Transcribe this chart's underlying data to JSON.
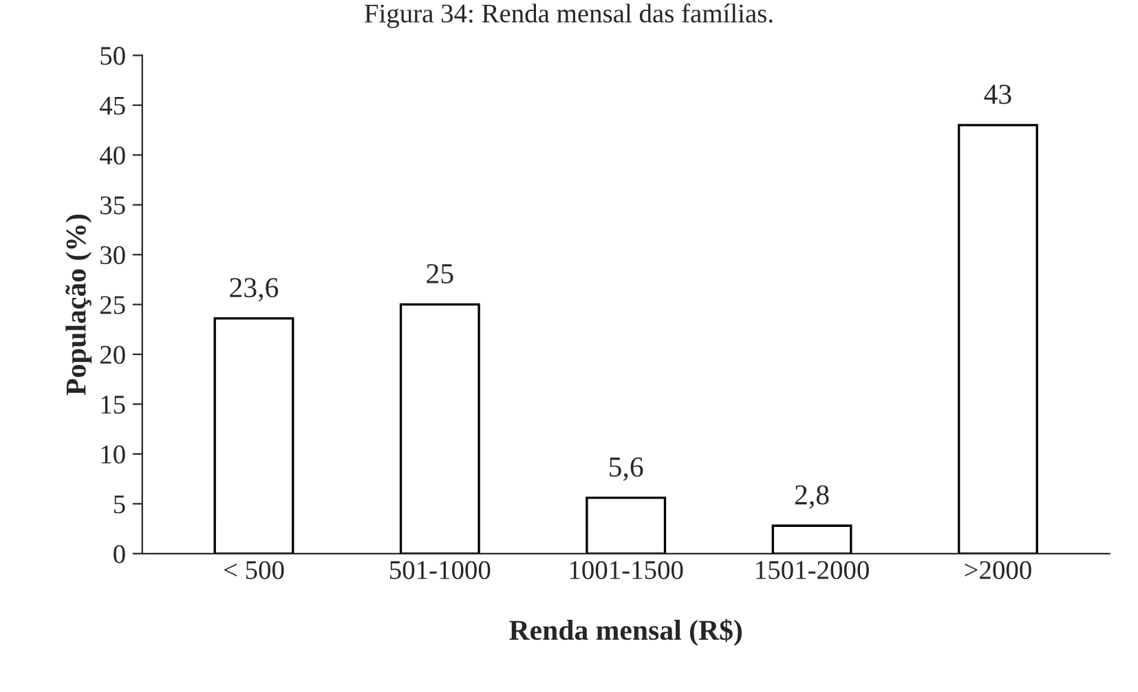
{
  "chart_data": {
    "type": "bar",
    "title": "Figura 34: Renda mensal das famílias.",
    "xlabel": "Renda mensal (R$)",
    "ylabel": "População (%)",
    "categories": [
      "< 500",
      "501-1000",
      "1001-1500",
      "1501-2000",
      ">2000"
    ],
    "values": [
      23.6,
      25,
      5.6,
      2.8,
      43
    ],
    "value_labels": [
      "23,6",
      "25",
      "5,6",
      "2,8",
      "43"
    ],
    "color": "#ffffff",
    "ylim": [
      0,
      50
    ],
    "yticks": [
      0,
      5,
      10,
      15,
      20,
      25,
      30,
      35,
      40,
      45,
      50
    ],
    "grid": false,
    "legend": false
  }
}
